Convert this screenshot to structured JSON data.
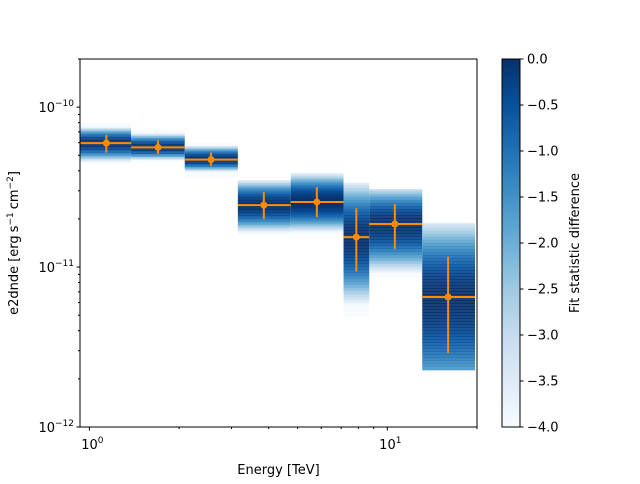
{
  "chart_data": {
    "type": "scatter",
    "title": "",
    "xlabel": "Energy [TeV]",
    "ylabel_parts": [
      "e2dnde [erg",
      "s",
      "−1",
      "cm",
      "−2",
      "]"
    ],
    "xscale": "log",
    "yscale": "log",
    "xlim": [
      0.93,
      20
    ],
    "ylim": [
      1e-12,
      2e-10
    ],
    "grid": false,
    "x_ticks": [
      {
        "value": 1,
        "base": "10",
        "exp": "0"
      },
      {
        "value": 10,
        "base": "10",
        "exp": "1"
      }
    ],
    "y_ticks": [
      {
        "value": 1e-12,
        "base": "10",
        "exp": "−12"
      },
      {
        "value": 1e-11,
        "base": "10",
        "exp": "−11"
      },
      {
        "value": 1e-10,
        "base": "10",
        "exp": "−10"
      }
    ],
    "marker_color": "#ff8c00",
    "points": [
      {
        "e_min": 0.93,
        "e_max": 1.38,
        "x": 1.14,
        "y": 5.96e-11,
        "y_lo": 5.2e-11,
        "y_hi": 6.7e-11,
        "scan": [
          4.47e-11,
          7.94e-11
        ]
      },
      {
        "e_min": 1.38,
        "e_max": 2.09,
        "x": 1.7,
        "y": 5.6e-11,
        "y_lo": 5.1e-11,
        "y_hi": 6.2e-11,
        "scan": [
          4.6e-11,
          7.18e-11
        ]
      },
      {
        "e_min": 2.09,
        "e_max": 3.15,
        "x": 2.56,
        "y": 4.7e-11,
        "y_lo": 4.3e-11,
        "y_hi": 5.2e-11,
        "scan": [
          3.65e-11,
          5.96e-11
        ]
      },
      {
        "e_min": 3.15,
        "e_max": 4.74,
        "x": 3.85,
        "y": 2.44e-11,
        "y_lo": 2e-11,
        "y_hi": 2.94e-11,
        "scan": [
          1.63e-11,
          3.5e-11
        ]
      },
      {
        "e_min": 4.74,
        "e_max": 7.13,
        "x": 5.8,
        "y": 2.55e-11,
        "y_lo": 2.05e-11,
        "y_hi": 3.16e-11,
        "scan": [
          1.63e-11,
          3.88e-11
        ]
      },
      {
        "e_min": 7.13,
        "e_max": 8.7,
        "x": 7.87,
        "y": 1.54e-11,
        "y_lo": 9.4e-12,
        "y_hi": 2.33e-11,
        "scan": [
          5e-12,
          3.35e-11
        ]
      },
      {
        "e_min": 8.7,
        "e_max": 13.1,
        "x": 10.6,
        "y": 1.86e-11,
        "y_lo": 1.3e-11,
        "y_hi": 2.47e-11,
        "scan": [
          8.66e-12,
          3.07e-11
        ]
      },
      {
        "e_min": 13.1,
        "e_max": 19.7,
        "x": 16.0,
        "y": 6.5e-12,
        "y_lo": 2.9e-12,
        "y_hi": 1.16e-11,
        "scan": [
          2.3e-12,
          1.88e-11
        ]
      }
    ],
    "colorbar": {
      "label": "Fit statistic difference",
      "colormap": "Blues",
      "range": [
        -4.0,
        0.0
      ],
      "ticks": [
        "0.0",
        "−0.5",
        "−1.0",
        "−1.5",
        "−2.0",
        "−2.5",
        "−3.0",
        "−3.5",
        "−4.0"
      ]
    }
  }
}
